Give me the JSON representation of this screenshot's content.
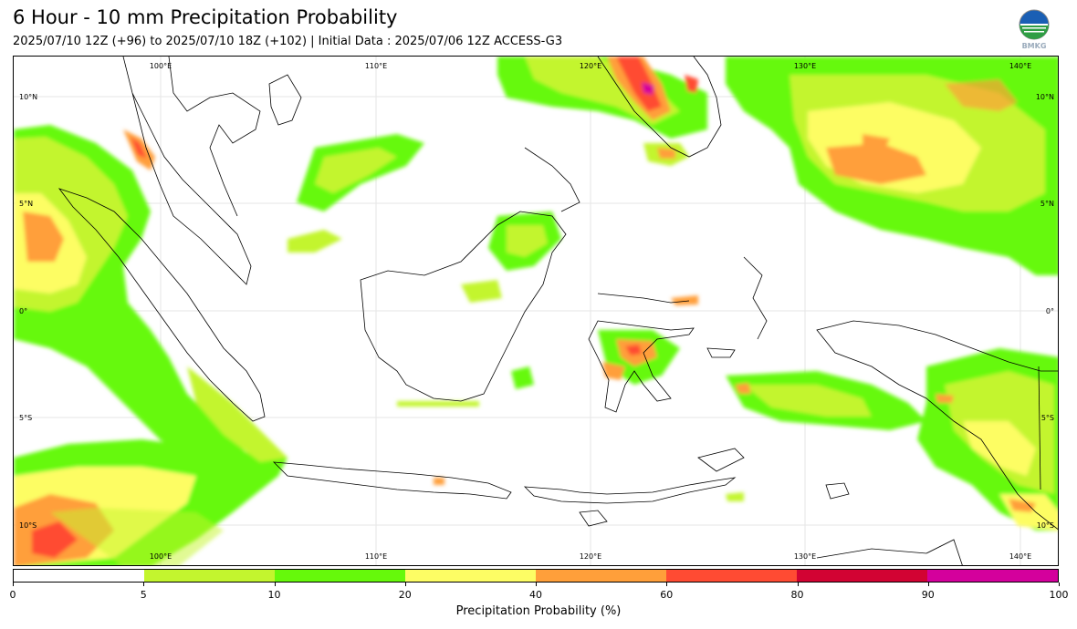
{
  "header": {
    "title": "6 Hour - 10 mm Precipitation Probability",
    "subtitle": "2025/07/10 12Z (+96) to 2025/07/10 18Z (+102) | Initial Data : 2025/07/06 12Z ACCESS-G3"
  },
  "logo": {
    "icon": "bmkg-logo",
    "text": "BMKG"
  },
  "map": {
    "lon_labels_top": [
      "100°E",
      "110°E",
      "120°E",
      "130°E",
      "140°E"
    ],
    "lon_labels_bottom": [
      "100°E",
      "110°E",
      "120°E",
      "130°E",
      "140°E"
    ],
    "lat_labels_left": [
      "10°N",
      "5°N",
      "0°",
      "5°S",
      "10°S"
    ],
    "lat_labels_right": [
      "10°N",
      "5°N",
      "0°",
      "5°S",
      "10°S"
    ]
  },
  "colorbar": {
    "colors": [
      "#ffffff",
      "#c3f52e",
      "#66f90b",
      "#fdfd64",
      "#ff9f3a",
      "#ff4b33",
      "#d20333",
      "#d4009c"
    ],
    "ticks": [
      "0",
      "5",
      "10",
      "20",
      "40",
      "60",
      "80",
      "90",
      "100"
    ],
    "label": "Precipitation Probability (%)"
  }
}
